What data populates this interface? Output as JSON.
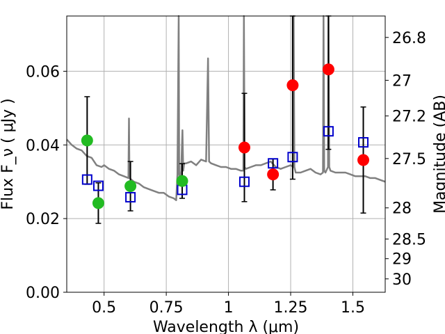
{
  "chart_data": {
    "type": "scatter",
    "title": "",
    "xlabel": "Wavelength  λ (μm)",
    "ylabel": "Flux  F_ν  ( μJy )",
    "ylabel_right": "Magnitude (AB)",
    "xlim": [
      0.35,
      1.63
    ],
    "ylim": [
      0,
      0.075
    ],
    "grid": true,
    "x_ticks": [
      0.5,
      0.75,
      1.0,
      1.25,
      1.5
    ],
    "x_tick_labels": [
      "0.5",
      "0.75",
      "1",
      "1.25",
      "1.5"
    ],
    "y_ticks": [
      0,
      0.02,
      0.04,
      0.06
    ],
    "y_tick_labels": [
      "0.00",
      "0.02",
      "0.04",
      "0.06"
    ],
    "mag_ticks": [
      26.8,
      27,
      27.2,
      27.5,
      28,
      28.5,
      29,
      30
    ],
    "mag_tick_labels": [
      "26.8",
      "27",
      "27.2",
      "27.5",
      "28",
      "28.5",
      "29",
      "30"
    ],
    "colors": {
      "spectrum": "#808080",
      "green_points": "#22bb22",
      "red_points": "#ff0000",
      "model_squares": "#0000cc",
      "errorbars": "#000000",
      "grid": "#b0b0b0"
    },
    "spectrum": {
      "x": [
        0.35,
        0.37,
        0.39,
        0.41,
        0.43,
        0.45,
        0.47,
        0.49,
        0.5,
        0.52,
        0.54,
        0.56,
        0.58,
        0.598,
        0.6,
        0.602,
        0.62,
        0.64,
        0.66,
        0.68,
        0.7,
        0.72,
        0.74,
        0.76,
        0.78,
        0.79,
        0.795,
        0.8,
        0.802,
        0.805,
        0.81,
        0.815,
        0.818,
        0.822,
        0.83,
        0.85,
        0.87,
        0.89,
        0.91,
        0.918,
        0.922,
        0.93,
        0.95,
        0.97,
        0.99,
        1.01,
        1.03,
        1.05,
        1.06,
        1.062,
        1.065,
        1.07,
        1.09,
        1.11,
        1.13,
        1.15,
        1.17,
        1.19,
        1.21,
        1.23,
        1.25,
        1.26,
        1.262,
        1.265,
        1.27,
        1.29,
        1.31,
        1.33,
        1.35,
        1.37,
        1.38,
        1.382,
        1.385,
        1.39,
        1.4,
        1.402,
        1.405,
        1.41,
        1.43,
        1.45,
        1.47,
        1.49,
        1.51,
        1.53,
        1.55,
        1.57,
        1.59,
        1.61,
        1.63
      ],
      "y": [
        0.0415,
        0.04,
        0.039,
        0.0385,
        0.037,
        0.0365,
        0.0345,
        0.034,
        0.0345,
        0.0335,
        0.033,
        0.032,
        0.0315,
        0.031,
        0.0472,
        0.031,
        0.03,
        0.0295,
        0.0285,
        0.028,
        0.0275,
        0.027,
        0.027,
        0.026,
        0.0255,
        0.025,
        0.032,
        0.075,
        0.032,
        0.03,
        0.033,
        0.044,
        0.033,
        0.035,
        0.035,
        0.0355,
        0.0345,
        0.036,
        0.0355,
        0.0635,
        0.0355,
        0.035,
        0.0345,
        0.034,
        0.034,
        0.0335,
        0.0335,
        0.033,
        0.033,
        0.075,
        0.034,
        0.0335,
        0.034,
        0.0345,
        0.0345,
        0.035,
        0.0355,
        0.034,
        0.0335,
        0.034,
        0.0345,
        0.034,
        0.075,
        0.034,
        0.0325,
        0.0325,
        0.033,
        0.0335,
        0.0325,
        0.032,
        0.0325,
        0.075,
        0.033,
        0.0325,
        0.034,
        0.075,
        0.034,
        0.033,
        0.0325,
        0.0325,
        0.0325,
        0.032,
        0.0315,
        0.0315,
        0.0315,
        0.031,
        0.031,
        0.0305,
        0.03
      ]
    },
    "observed": [
      {
        "x": 0.432,
        "y": 0.0412,
        "err": 0.0119,
        "group": "green"
      },
      {
        "x": 0.477,
        "y": 0.0242,
        "err": 0.0055,
        "group": "green"
      },
      {
        "x": 0.606,
        "y": 0.0288,
        "err": 0.0067,
        "group": "green"
      },
      {
        "x": 0.814,
        "y": 0.0302,
        "err": 0.0047,
        "group": "green"
      },
      {
        "x": 1.064,
        "y": 0.0393,
        "err": 0.0147,
        "group": "red"
      },
      {
        "x": 1.179,
        "y": 0.032,
        "err": 0.0042,
        "group": "red"
      },
      {
        "x": 1.258,
        "y": 0.0562,
        "err": 0.0255,
        "group": "red"
      },
      {
        "x": 1.402,
        "y": 0.0605,
        "err": 0.0217,
        "group": "red"
      },
      {
        "x": 1.542,
        "y": 0.0359,
        "err": 0.0144,
        "group": "red"
      }
    ],
    "model": [
      {
        "x": 0.432,
        "y": 0.0306
      },
      {
        "x": 0.477,
        "y": 0.0289
      },
      {
        "x": 0.606,
        "y": 0.0258
      },
      {
        "x": 0.814,
        "y": 0.0278
      },
      {
        "x": 1.064,
        "y": 0.03
      },
      {
        "x": 1.179,
        "y": 0.035
      },
      {
        "x": 1.258,
        "y": 0.0367
      },
      {
        "x": 1.402,
        "y": 0.0437
      },
      {
        "x": 1.542,
        "y": 0.0407
      }
    ]
  }
}
